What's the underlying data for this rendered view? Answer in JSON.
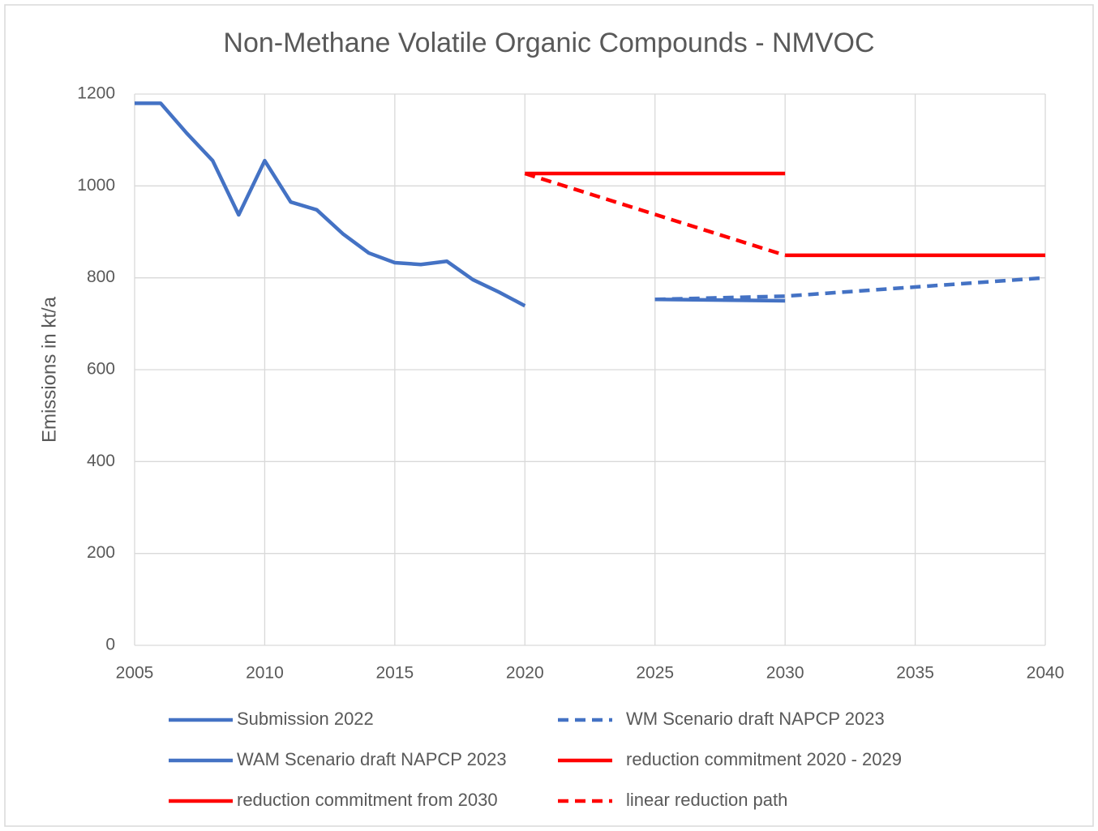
{
  "chart_data": {
    "type": "line",
    "title": "Non-Methane Volatile Organic Compounds - NMVOC",
    "y_label": "Emissions in kt/a",
    "xlim": [
      2005,
      2040
    ],
    "xticks": [
      2005,
      2010,
      2015,
      2020,
      2025,
      2030,
      2035,
      2040
    ],
    "ylim": [
      0,
      1200
    ],
    "yticks": [
      0,
      200,
      400,
      600,
      800,
      1000,
      1200
    ],
    "grid": true,
    "series": [
      {
        "name": "Submission 2022",
        "color": "#4472c4",
        "dashed": false,
        "x": [
          2005,
          2006,
          2007,
          2008,
          2009,
          2010,
          2011,
          2012,
          2013,
          2014,
          2015,
          2016,
          2017,
          2018,
          2019,
          2020
        ],
        "values": [
          1180,
          1180,
          1115,
          1055,
          937,
          1055,
          965,
          948,
          896,
          854,
          833,
          829,
          836,
          796,
          769,
          739
        ]
      },
      {
        "name": "WM Scenario draft NAPCP 2023",
        "color": "#4472c4",
        "dashed": true,
        "x": [
          2025,
          2030,
          2035,
          2040
        ],
        "values": [
          753,
          760,
          780,
          800
        ]
      },
      {
        "name": "WAM Scenario draft NAPCP 2023",
        "color": "#4472c4",
        "dashed": false,
        "x": [
          2025,
          2030
        ],
        "values": [
          753,
          750
        ]
      },
      {
        "name": "reduction commitment 2020 - 2029",
        "color": "#ff0000",
        "dashed": false,
        "x": [
          2020,
          2030
        ],
        "values": [
          1027,
          1027
        ]
      },
      {
        "name": "reduction commitment from 2030",
        "color": "#ff0000",
        "dashed": false,
        "x": [
          2030,
          2040
        ],
        "values": [
          849,
          849
        ]
      },
      {
        "name": "linear reduction path",
        "color": "#ff0000",
        "dashed": true,
        "x": [
          2020,
          2030
        ],
        "values": [
          1027,
          849
        ]
      }
    ]
  }
}
